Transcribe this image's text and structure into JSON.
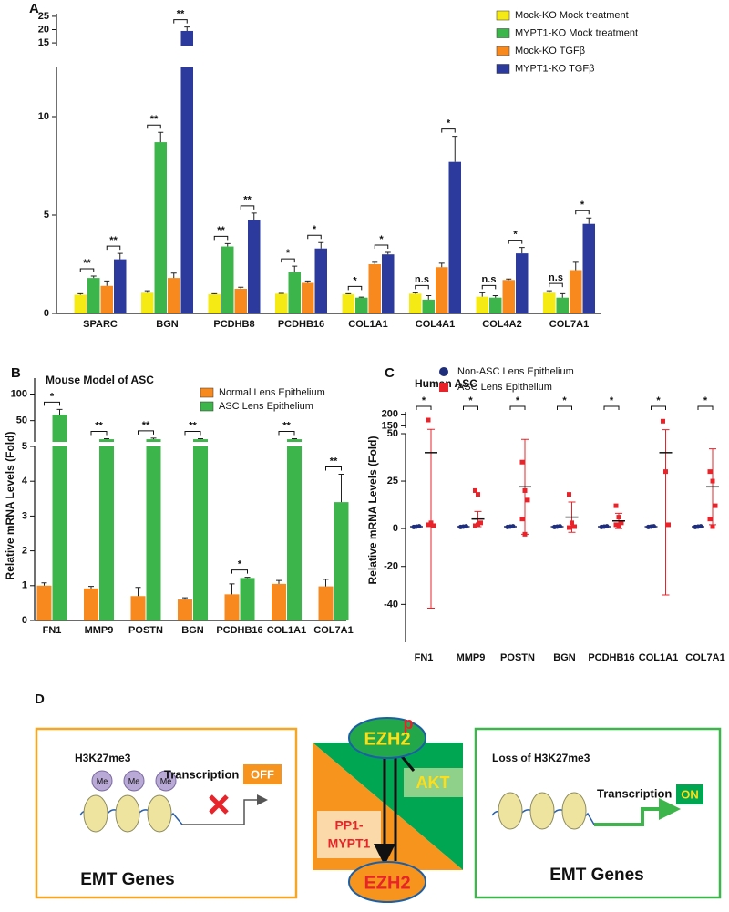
{
  "panel_labels": [
    "A",
    "B",
    "C",
    "D"
  ],
  "chart_data": [
    {
      "type": "bar",
      "categories": [
        "SPARC",
        "BGN",
        "PCDHB8",
        "PCDHB16",
        "COL1A1",
        "COL4A1",
        "COL4A2",
        "COL7A1"
      ],
      "series": [
        {
          "name": "Mock-KO Mock treatment",
          "color": "#f5ea14",
          "values": [
            0.95,
            1.05,
            0.97,
            1.0,
            0.97,
            1.0,
            0.85,
            1.05
          ],
          "errors": [
            0.05,
            0.1,
            0.03,
            0.02,
            0.03,
            0.05,
            0.2,
            0.1
          ]
        },
        {
          "name": "MYPT1-KO Mock treatment",
          "color": "#3cb54a",
          "values": [
            1.8,
            8.7,
            3.4,
            2.1,
            0.8,
            0.7,
            0.8,
            0.8
          ],
          "errors": [
            0.1,
            0.5,
            0.15,
            0.3,
            0.03,
            0.2,
            0.1,
            0.2
          ]
        },
        {
          "name": "Mock-KO TGFβ",
          "color": "#f7891f",
          "values": [
            1.4,
            1.8,
            1.25,
            1.55,
            2.5,
            2.35,
            1.7,
            2.2
          ],
          "errors": [
            0.25,
            0.25,
            0.08,
            0.1,
            0.1,
            0.2,
            0.05,
            0.4
          ]
        },
        {
          "name": "MYPT1-KO TGFβ",
          "color": "#2b3a9c",
          "values": [
            2.75,
            19.5,
            4.75,
            3.3,
            3.0,
            7.7,
            3.05,
            4.55
          ],
          "errors": [
            0.3,
            1.5,
            0.35,
            0.3,
            0.1,
            1.3,
            0.3,
            0.3
          ]
        }
      ],
      "significance": [
        [
          "**",
          "**"
        ],
        [
          "**",
          "**"
        ],
        [
          "**",
          "**"
        ],
        [
          "*",
          "*"
        ],
        [
          "*",
          "*"
        ],
        [
          "n.s",
          "*"
        ],
        [
          "n.s",
          "*"
        ],
        [
          "n.s",
          "*"
        ]
      ],
      "ylim": [
        0,
        26
      ],
      "axis_break": [
        12.5,
        14
      ],
      "yticks": [
        0,
        5,
        10,
        15,
        20,
        25
      ],
      "legend": "top-right"
    },
    {
      "type": "bar",
      "title": "Mouse Model of ASC",
      "y_label": "Relative mRNA Levels (Fold)",
      "categories": [
        "FN1",
        "MMP9",
        "POSTN",
        "BGN",
        "PCDHB16",
        "COL1A1",
        "COL7A1"
      ],
      "series": [
        {
          "name": "Normal  Lens Epithelium",
          "color": "#f7891f",
          "values": [
            1.0,
            0.92,
            0.7,
            0.6,
            0.75,
            1.05,
            0.98
          ],
          "errors": [
            0.08,
            0.06,
            0.25,
            0.05,
            0.3,
            0.1,
            0.2
          ]
        },
        {
          "name": "ASC  Lens Epithelium",
          "color": "#3cb54a",
          "values": [
            61,
            15,
            15,
            15,
            1.22,
            15,
            3.4
          ],
          "errors": [
            10,
            1,
            2,
            1,
            0.02,
            1,
            0.8
          ]
        }
      ],
      "significance": [
        "*",
        "**",
        "**",
        "**",
        "*",
        "**",
        "**"
      ],
      "ylim": [
        0,
        130
      ],
      "axis_break": [
        5,
        10
      ],
      "yticks": [
        0,
        1,
        2,
        3,
        4,
        5,
        50,
        100
      ],
      "legend": "top-right"
    },
    {
      "type": "scatter",
      "title": "Human ASC",
      "y_label": "Relative mRNA Levels (Fold)",
      "categories": [
        "FN1",
        "MMP9",
        "POSTN",
        "BGN",
        "PCDHB16",
        "COL1A1",
        "COL7A1"
      ],
      "series": [
        {
          "name": "Non-ASC Lens Epithelium",
          "color": "#1f2e7a",
          "points": [
            [
              0.8,
              1,
              1.2
            ],
            [
              0.8,
              1,
              1.2
            ],
            [
              0.8,
              1,
              1.2
            ],
            [
              0.8,
              1,
              1.2
            ],
            [
              0.8,
              1,
              1.2
            ],
            [
              0.8,
              1,
              1.2
            ],
            [
              0.8,
              1,
              1.2
            ]
          ],
          "means": [
            1,
            1,
            1,
            1,
            1,
            1,
            1
          ],
          "errors": [
            0.3,
            0.3,
            0.3,
            0.3,
            0.3,
            0.3,
            0.3
          ]
        },
        {
          "name": "ASC  Lens Epithelium",
          "color": "#e8232a",
          "points": [
            [
              175,
              3,
              1.5,
              2
            ],
            [
              20,
              18,
              3,
              1.5,
              2
            ],
            [
              35,
              20,
              15,
              5,
              -3
            ],
            [
              18,
              3,
              1,
              0.5
            ],
            [
              12,
              6,
              3,
              2,
              1
            ],
            [
              170,
              30,
              2
            ],
            [
              30,
              25,
              12,
              5,
              1
            ]
          ],
          "means": [
            40,
            5,
            22,
            6,
            4,
            40,
            22
          ],
          "errors": [
            82,
            4,
            25,
            8,
            4,
            75,
            20
          ]
        }
      ],
      "significance": [
        "*",
        "*",
        "*",
        "*",
        "*",
        "*",
        "*"
      ],
      "ylim": [
        -60,
        210
      ],
      "axis_break": [
        50,
        140
      ],
      "yticks": [
        -40,
        -20,
        0,
        25,
        50,
        150,
        200
      ],
      "legend": "top-right"
    }
  ],
  "diagram": {
    "left": {
      "mark": "H3K27me3",
      "methyl": [
        "Me",
        "Me",
        "Me"
      ],
      "transcription": "Transcription",
      "state": "OFF",
      "genes": "EMT Genes"
    },
    "center": {
      "top": "EZH2",
      "phospho": "p",
      "kinase": "AKT",
      "phosphatase": [
        "PP1-",
        "MYPT1"
      ],
      "bottom": "EZH2"
    },
    "right": {
      "mark": "Loss of H3K27me3",
      "transcription": "Transcription",
      "state": "ON",
      "genes": "EMT Genes"
    }
  }
}
